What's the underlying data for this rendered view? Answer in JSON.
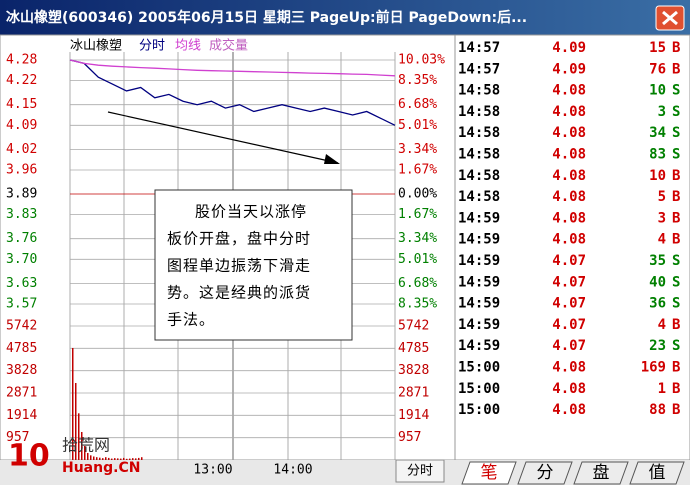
{
  "title_bar": "冰山橡塑(600346)  2005年06月15日  星期三  PageUp:前日  PageDown:后...",
  "chart_data": {
    "type": "line",
    "title": "冰山橡塑",
    "series": [
      {
        "name": "分时",
        "color": "#000080",
        "values": [
          4.28,
          4.27,
          4.23,
          4.21,
          4.19,
          4.2,
          4.17,
          4.18,
          4.16,
          4.15,
          4.16,
          4.14,
          4.15,
          4.13,
          4.14,
          4.15,
          4.14,
          4.13,
          4.14,
          4.13,
          4.12,
          4.13,
          4.11,
          4.09
        ]
      },
      {
        "name": "均线",
        "color": "#d040d0",
        "values": [
          4.28,
          4.27,
          4.265,
          4.262,
          4.26,
          4.258,
          4.256,
          4.254,
          4.252,
          4.25,
          4.249,
          4.248,
          4.247,
          4.246,
          4.245,
          4.244,
          4.243,
          4.242,
          4.241,
          4.24,
          4.239,
          4.238,
          4.236,
          4.234
        ]
      }
    ],
    "volume": {
      "name": "成交量",
      "color": "#c00000",
      "values": [
        4800,
        3300,
        2000,
        1200,
        600,
        300,
        200,
        150,
        120,
        100,
        80,
        120,
        90,
        60,
        80,
        70,
        60,
        90,
        50,
        60,
        80,
        70,
        90,
        120
      ]
    },
    "ylim": [
      3.57,
      4.28
    ],
    "yticks": [
      4.28,
      4.22,
      4.15,
      4.09,
      4.02,
      3.96,
      3.89,
      3.83,
      3.76,
      3.7,
      3.63,
      3.57
    ],
    "ytick_labels": [
      "4.28",
      "4.22",
      "4.15",
      "4.09",
      "4.02",
      "3.96",
      "3.89",
      "3.83",
      "3.76",
      "3.70",
      "3.63",
      "3.57"
    ],
    "pct_labels": [
      "10.03%",
      "8.35%",
      "6.68%",
      "5.01%",
      "3.34%",
      "1.67%",
      "0.00%",
      "1.67%",
      "3.34%",
      "5.01%",
      "6.68%",
      "8.35%"
    ],
    "volume_lim": [
      0,
      5742
    ],
    "volume_ticks": [
      5742,
      4785,
      3828,
      2871,
      1914,
      957
    ],
    "time_labels": [
      "13:00",
      "14:00"
    ],
    "mode_button": "分时",
    "annotation": [
      "股价当天以涨停",
      "板价开盘，盘中分时",
      "图程单边振荡下滑走",
      "势。这是经典的派货",
      "手法。"
    ]
  },
  "trades": [
    [
      "14:57",
      "4.09",
      "15",
      "B"
    ],
    [
      "14:57",
      "4.09",
      "76",
      "B"
    ],
    [
      "14:58",
      "4.08",
      "10",
      "S"
    ],
    [
      "14:58",
      "4.08",
      "3",
      "S"
    ],
    [
      "14:58",
      "4.08",
      "34",
      "S"
    ],
    [
      "14:58",
      "4.08",
      "83",
      "S"
    ],
    [
      "14:58",
      "4.08",
      "10",
      "B"
    ],
    [
      "14:58",
      "4.08",
      "5",
      "B"
    ],
    [
      "14:59",
      "4.08",
      "3",
      "B"
    ],
    [
      "14:59",
      "4.08",
      "4",
      "B"
    ],
    [
      "14:59",
      "4.07",
      "35",
      "S"
    ],
    [
      "14:59",
      "4.07",
      "40",
      "S"
    ],
    [
      "14:59",
      "4.07",
      "36",
      "S"
    ],
    [
      "14:59",
      "4.07",
      "4",
      "B"
    ],
    [
      "14:59",
      "4.07",
      "23",
      "S"
    ],
    [
      "15:00",
      "4.08",
      "169",
      "B"
    ],
    [
      "15:00",
      "4.08",
      "1",
      "B"
    ],
    [
      "15:00",
      "4.08",
      "88",
      "B"
    ]
  ],
  "tabs": [
    "笔",
    "分",
    "盘",
    "值"
  ],
  "watermark": {
    "logo": "10",
    "name": "拾荒网",
    "site": "Huang.CN"
  }
}
